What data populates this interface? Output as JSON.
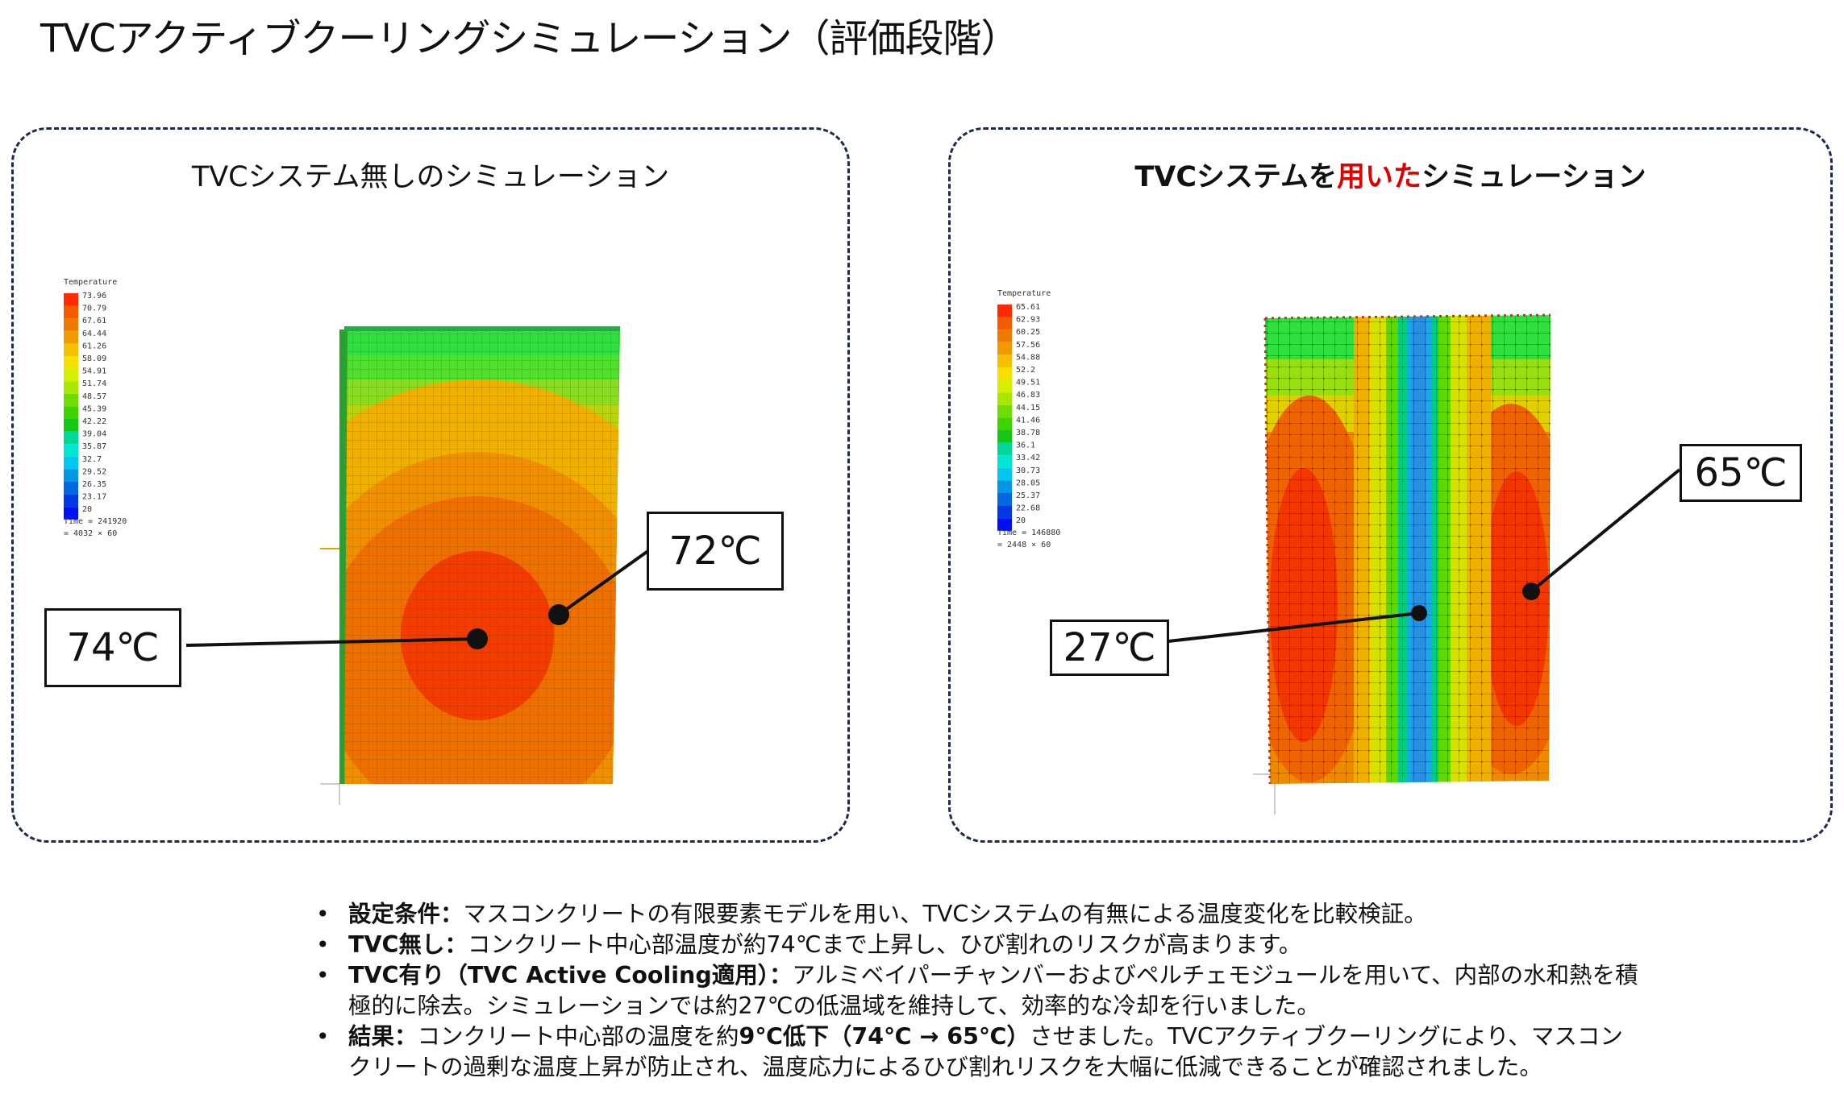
{
  "title": "TVCアクティブクーリングシミュレーション（評価段階）",
  "left_panel": {
    "title": "TVCシステム無しのシミュレーション",
    "legend_title": "Temperature",
    "legend_values": [
      "73.96",
      "70.79",
      "67.61",
      "64.44",
      "61.26",
      "58.09",
      "54.91",
      "51.74",
      "48.57",
      "45.39",
      "42.22",
      "39.04",
      "35.87",
      "32.7",
      "29.52",
      "26.35",
      "23.17",
      "20"
    ],
    "time_line1": "Time = 241920",
    "time_line2": "= 4032 × 60",
    "callout_center": "74℃",
    "callout_mid": "72℃"
  },
  "right_panel": {
    "title_part1": "TVCシステムを",
    "title_part2": "用いた",
    "title_part3": "シミュレーション",
    "legend_title": "Temperature",
    "legend_values": [
      "65.61",
      "62.93",
      "60.25",
      "57.56",
      "54.88",
      "52.2",
      "49.51",
      "46.83",
      "44.15",
      "41.46",
      "38.78",
      "36.1",
      "33.42",
      "30.73",
      "28.05",
      "25.37",
      "22.68",
      "20"
    ],
    "time_line1": "Time = 146880",
    "time_line2": "= 2448 × 60",
    "callout_right": "65℃",
    "callout_center": "27℃"
  },
  "notes": [
    {
      "label": "設定条件：",
      "text": "マスコンクリートの有限要素モデルを用い、TVCシステムの有無による温度変化を比較検証。"
    },
    {
      "label": "TVC無し：",
      "text": "コンクリート中心部温度が約74℃まで上昇し、ひび割れのリスクが高まります。"
    },
    {
      "label": "TVC有り（TVC Active Cooling適用）：",
      "text": "アルミベイパーチャンバーおよびペルチェモジュールを用いて、内部の水和熱を積極的に除去。シミュレーションでは約27℃の低温域を維持して、効率的な冷却を行いました。"
    },
    {
      "label": "結果：",
      "text1": "コンクリート中心部の温度を約",
      "bold": "9℃低下（74℃ → 65℃）",
      "text2": "させました。TVCアクティブクーリングにより、マスコンクリートの過剰な温度上昇が防止され、温度応力によるひび割れリスクを大幅に低減できることが確認されました。"
    }
  ],
  "legend_colors": [
    "#ff2a00",
    "#f55c00",
    "#ef7a00",
    "#f09a00",
    "#f5c000",
    "#f5e000",
    "#d6ee00",
    "#a8e800",
    "#6ede00",
    "#3fd400",
    "#14c814",
    "#00d89a",
    "#00e6d2",
    "#00c8f0",
    "#0098e6",
    "#0068e0",
    "#0038e8",
    "#0010f0"
  ]
}
